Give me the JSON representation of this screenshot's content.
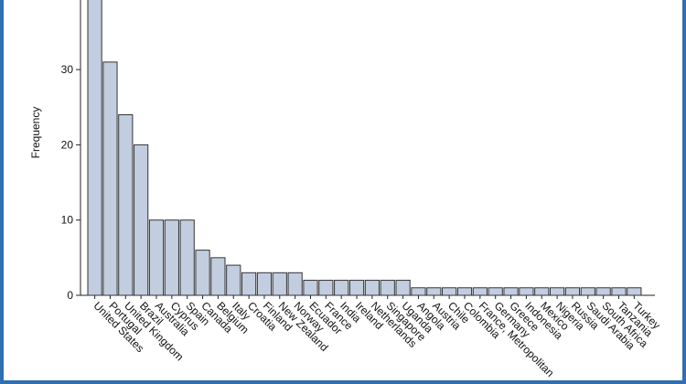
{
  "chart_data": {
    "type": "bar",
    "xlabel": "",
    "ylabel": "Frequency",
    "ylim": [
      0,
      40
    ],
    "yticks": [
      0,
      10,
      20,
      30
    ],
    "grid": false,
    "categories": [
      "United States",
      "Portugal",
      "United Kingdom",
      "Brazil",
      "Australia",
      "Cyprus",
      "Spain",
      "Canada",
      "Belgium",
      "Italy",
      "Croatia",
      "Finland",
      "New Zealand",
      "Norway",
      "Ecuador",
      "France",
      "India",
      "Ireland",
      "Netherlands",
      "Singapore",
      "Uganda",
      "Angola",
      "Austria",
      "Chile",
      "Colombia",
      "France, Metropolitan",
      "Germany",
      "Greece",
      "Indonesia",
      "Mexico",
      "Nigeria",
      "Russia",
      "Saudi Arabia",
      "South Africa",
      "Tanzania",
      "Turkey"
    ],
    "values": [
      40,
      31,
      24,
      20,
      10,
      10,
      10,
      6,
      5,
      4,
      3,
      3,
      3,
      3,
      2,
      2,
      2,
      2,
      2,
      2,
      2,
      1,
      1,
      1,
      1,
      1,
      1,
      1,
      1,
      1,
      1,
      1,
      1,
      1,
      1,
      1
    ],
    "bar_color": "#c3cde0",
    "bar_edge_color": "#333333"
  },
  "frame": {
    "border_color": "#2f6fb2"
  }
}
